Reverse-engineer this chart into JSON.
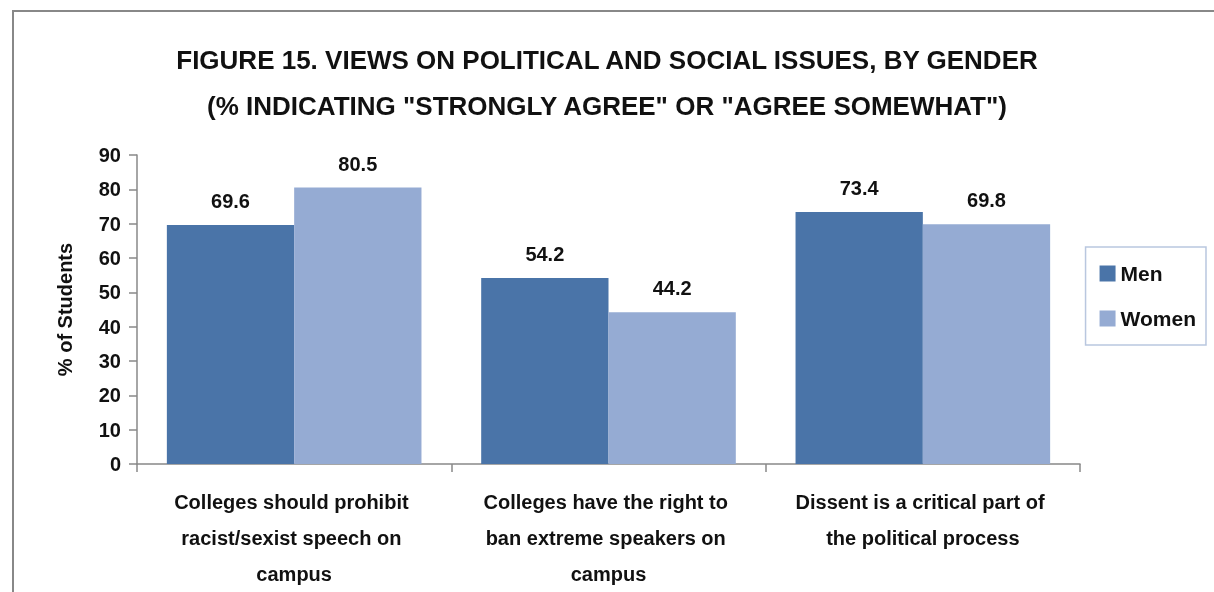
{
  "chart_data": {
    "type": "bar",
    "title": "FIGURE 15. VIEWS ON POLITICAL AND SOCIAL ISSUES, BY GENDER",
    "subtitle": "(% INDICATING \"STRONGLY AGREE\" OR \"AGREE SOMEWHAT\")",
    "ylabel": "% of Students",
    "categories": [
      "Colleges should prohibit racist/sexist speech on campus",
      "Colleges have the right to ban extreme speakers on campus",
      "Dissent is a critical part of the political process"
    ],
    "series": [
      {
        "name": "Men",
        "color": "#4a74a8",
        "values": [
          69.6,
          54.2,
          73.4
        ]
      },
      {
        "name": "Women",
        "color": "#95abd3",
        "values": [
          80.5,
          44.2,
          69.8
        ]
      }
    ],
    "ylim": [
      0,
      90
    ],
    "yticks": [
      0,
      10,
      20,
      30,
      40,
      50,
      60,
      70,
      80,
      90
    ],
    "grid": false,
    "legend": "right",
    "data_labels": true
  }
}
